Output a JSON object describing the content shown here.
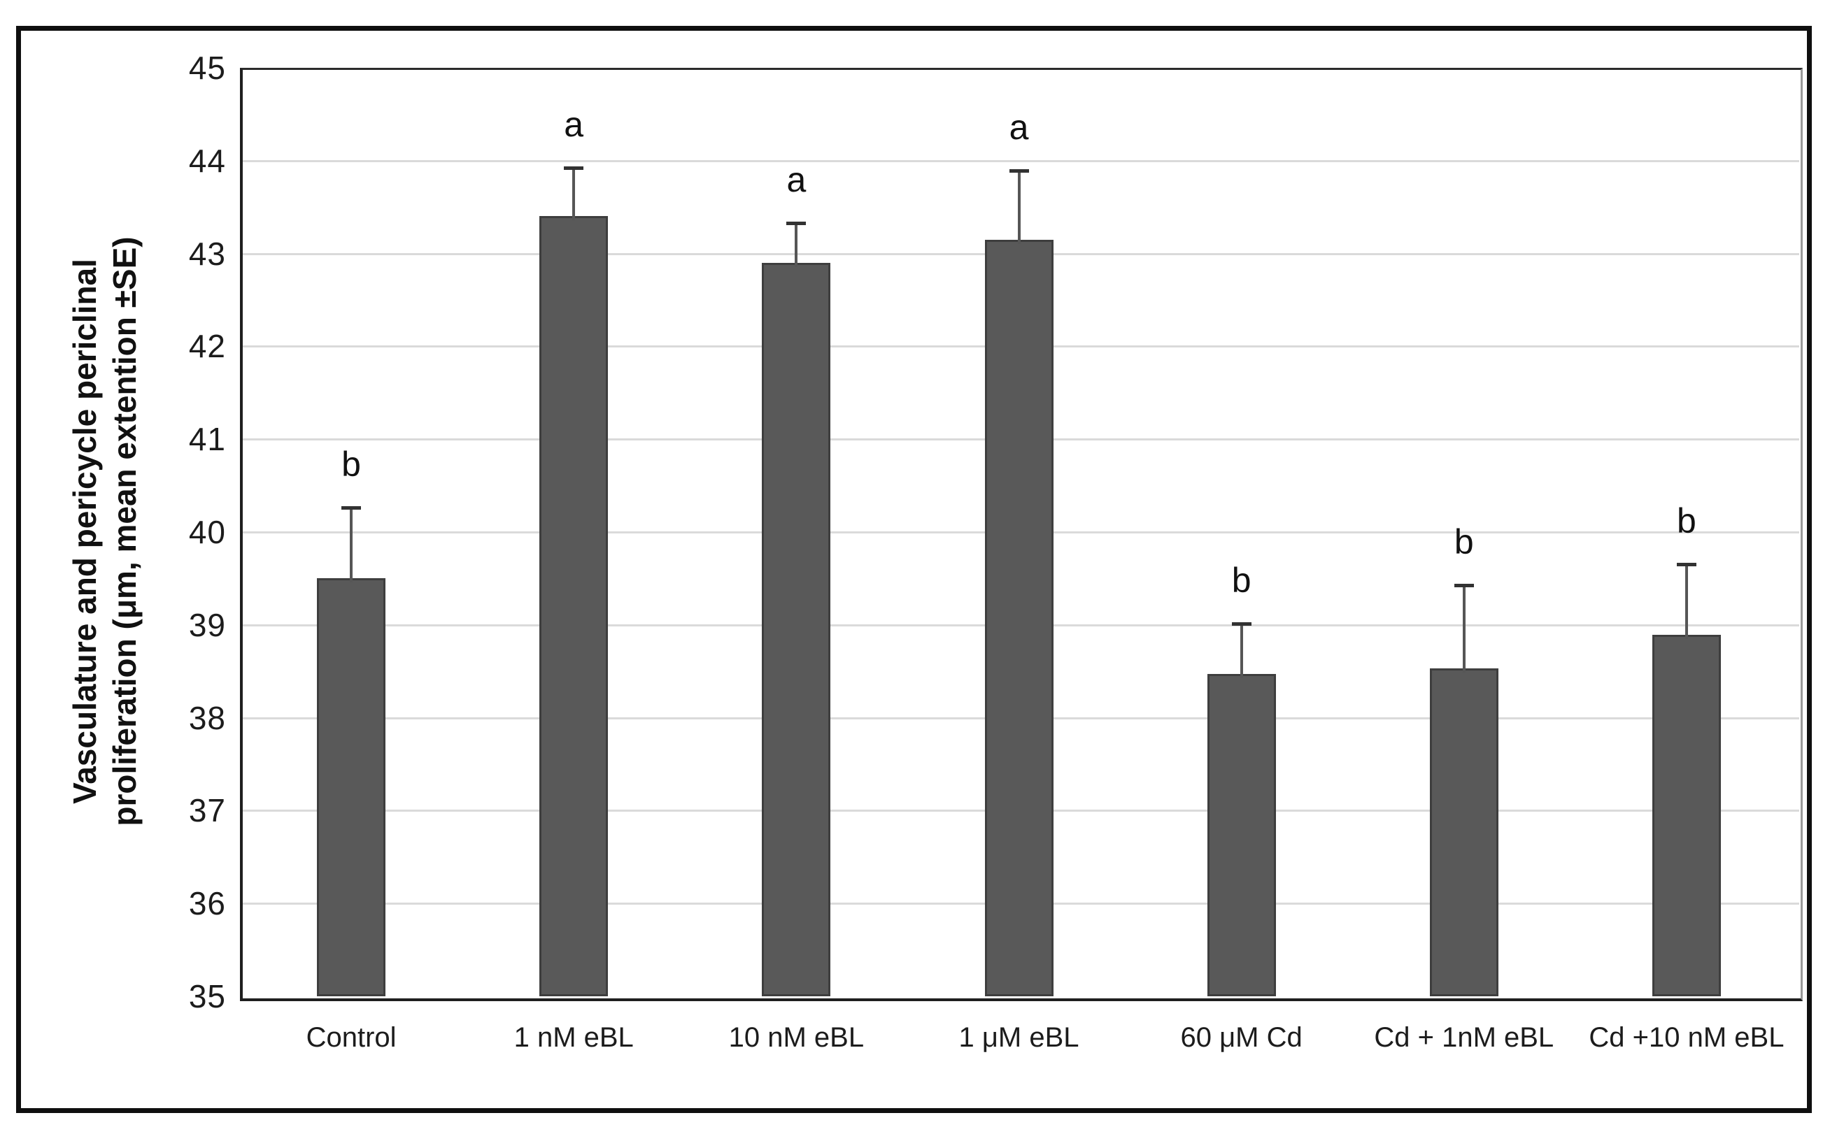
{
  "chart_data": {
    "type": "bar",
    "title": "",
    "categories": [
      "Control",
      "1 nM eBL",
      "10 nM eBL",
      "1 μM eBL",
      "60 μM Cd",
      "Cd + 1nM eBL",
      "Cd +10 nM eBL"
    ],
    "values": [
      39.5,
      43.4,
      42.9,
      43.15,
      38.47,
      38.53,
      38.89
    ],
    "errors_plus": [
      0.76,
      0.52,
      0.43,
      0.74,
      0.54,
      0.9,
      0.76
    ],
    "sig_letters": [
      "b",
      "a",
      "a",
      "a",
      "b",
      "b",
      "b"
    ],
    "ylabel": "Vasculature and pericycle periclinal proliferation (μm, mean extention ±SE)",
    "ylabel_lines": [
      "Vasculature and pericycle periclinal",
      "proliferation (μm, mean extention ±SE)"
    ],
    "xlabel": "",
    "ylim": [
      35,
      45
    ],
    "ytick_interval": 1,
    "yticks": [
      35,
      36,
      37,
      38,
      39,
      40,
      41,
      42,
      43,
      44,
      45
    ],
    "grid": "horizontal",
    "legend": "none",
    "bar_color": "#595959",
    "error_bar_color": "#565656",
    "gridline_color": "#dadada",
    "axis_color": "#1f1f1f",
    "frame_border_color": "#0f0f0f"
  }
}
